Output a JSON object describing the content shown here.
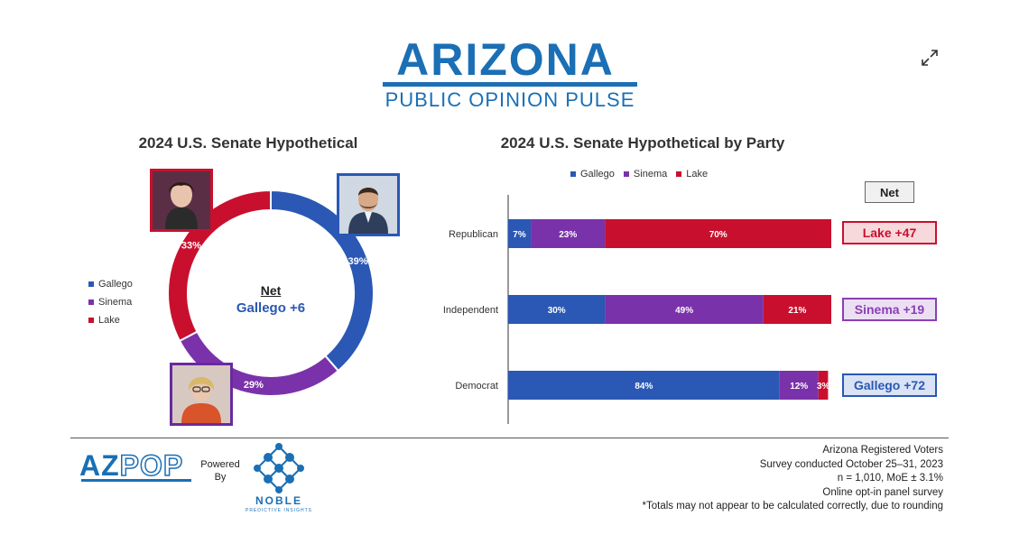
{
  "header": {
    "title": "ARIZONA",
    "subtitle": "PUBLIC OPINION PULSE",
    "expand_icon": "expand-icon"
  },
  "colors": {
    "gallego": "#2a58b4",
    "sinema": "#7a32aa",
    "lake": "#c8102e"
  },
  "chart_data": [
    {
      "type": "pie",
      "title": "2024 U.S. Senate Hypothetical",
      "categories": [
        "Gallego",
        "Sinema",
        "Lake"
      ],
      "values": [
        39,
        29,
        33
      ],
      "value_labels": [
        "39%",
        "29%",
        "33%"
      ],
      "legend": [
        "Gallego",
        "Sinema",
        "Lake"
      ],
      "legend_position": "left",
      "center_label": "Net",
      "center_value": "Gallego +6"
    },
    {
      "type": "bar",
      "orientation": "horizontal",
      "stacked": true,
      "title": "2024 U.S. Senate Hypothetical by Party",
      "categories": [
        "Republican",
        "Independent",
        "Democrat"
      ],
      "series": [
        {
          "name": "Gallego",
          "values": [
            7,
            30,
            84
          ],
          "labels": [
            "7%",
            "30%",
            "84%"
          ]
        },
        {
          "name": "Sinema",
          "values": [
            23,
            49,
            12
          ],
          "labels": [
            "23%",
            "49%",
            "12%"
          ]
        },
        {
          "name": "Lake",
          "values": [
            70,
            21,
            3
          ],
          "labels": [
            "70%",
            "21%",
            "3%"
          ]
        }
      ],
      "legend_position": "top",
      "net_header": "Net",
      "net": [
        "Lake +47",
        "Sinema +19",
        "Gallego +72"
      ]
    }
  ],
  "footer": {
    "logo_az": "AZ",
    "logo_pop": "POP",
    "powered_by": "Powered By",
    "noble_name": "NOBLE",
    "noble_sub": "PREDICTIVE INSIGHTS",
    "notes": [
      "Arizona Registered Voters",
      "Survey conducted October 25–31, 2023",
      "n = 1,010, MoE ± 3.1%",
      "Online opt-in panel survey",
      "*Totals may not appear to be calculated correctly, due to rounding"
    ]
  }
}
